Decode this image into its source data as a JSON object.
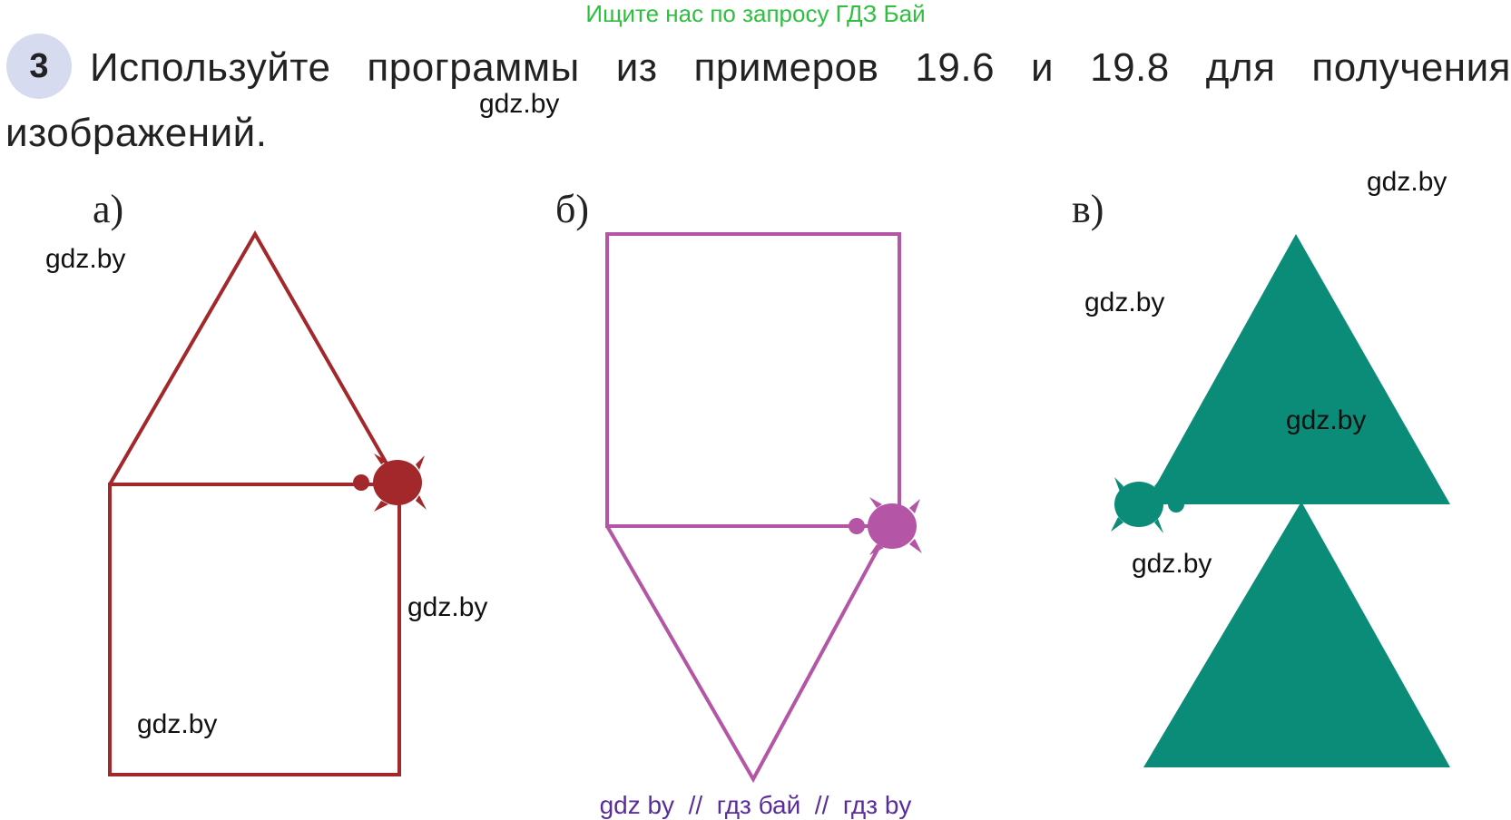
{
  "header": {
    "watermark": "Ищите нас по запросу ГДЗ Бай"
  },
  "task": {
    "number": "3",
    "lines": [
      "Используйте программы из примеров 19.6 и 19.8 для получения",
      "изображений."
    ]
  },
  "figures": [
    {
      "label": "а)"
    },
    {
      "label": "б)"
    },
    {
      "label": "в)"
    }
  ],
  "watermarks": [
    "gdz.by",
    "gdz.by",
    "gdz.by",
    "gdz.by",
    "gdz.by",
    "gdz.by",
    "gdz.by",
    "gdz.by"
  ],
  "footer": {
    "text": "gdz by  //  гдз бай  //  гдз by"
  }
}
